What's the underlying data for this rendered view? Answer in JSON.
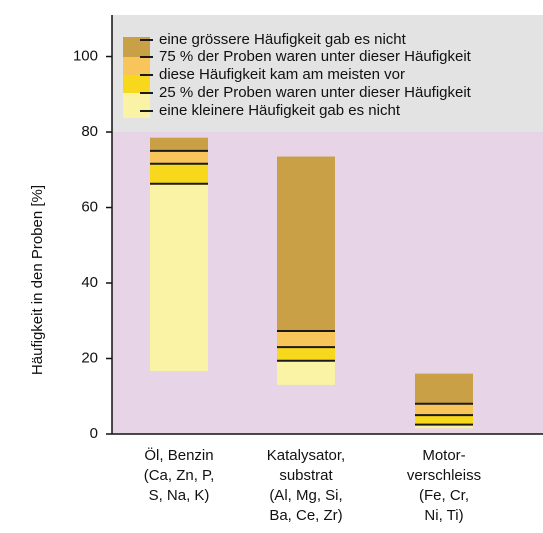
{
  "chart_data": {
    "type": "floating-quantile-bar",
    "y_label": "Häufigkeit in den Proben [%]",
    "categories": [
      [
        "Öl, Benzin",
        "(Ca, Zn, P,",
        "S, Na, K)"
      ],
      [
        "Katalysator,",
        "substrat",
        "(Al, Mg, Si,",
        "Ba, Ce, Zr)"
      ],
      [
        "Motor-",
        "verschleiss",
        "(Fe, Cr,",
        "Ni, Ti)"
      ]
    ],
    "min": [
      16.7,
      13,
      1.5
    ],
    "q1": [
      66.3,
      19.4,
      2.5
    ],
    "median": [
      71.6,
      23,
      5
    ],
    "q3": [
      75,
      27.3,
      8
    ],
    "max": [
      78.5,
      73.5,
      16
    ],
    "segment_colors": [
      "#faf3a6",
      "#f7d81c",
      "#f8c55a",
      "#c9a045"
    ],
    "line_color": "#1a1a1a",
    "legend": [
      "eine grössere Häufigkeit gab es nicht",
      "75 % der Proben waren unter dieser Häufigkeit",
      "diese Häufigkeit kam am meisten vor",
      "25 % der Proben waren unter dieser Häufigkeit",
      "eine kleinere Häufigkeit gab es nicht"
    ],
    "background_bands": [
      {
        "from": 0,
        "to": 80,
        "color": "#e7d4e7"
      },
      {
        "from": 80,
        "to": 111,
        "color": "#e3e3e3"
      }
    ],
    "ylim": [
      0,
      111
    ],
    "yticks": [
      0,
      20,
      40,
      60,
      80,
      100
    ]
  }
}
